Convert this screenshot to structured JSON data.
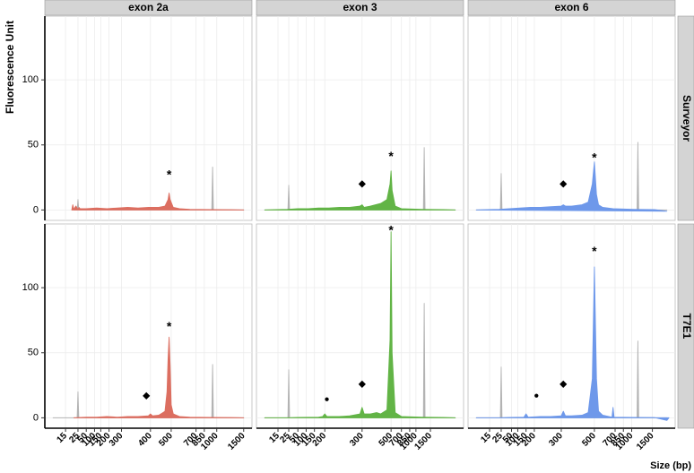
{
  "chart_data": {
    "type": "area",
    "y_label": "Fluorescence Unit",
    "x_label": "Size (bp)",
    "columns": [
      "exon 2a",
      "exon 3",
      "exon 6"
    ],
    "rows": [
      "Surveyor",
      "T7E1"
    ],
    "ylim": [
      -8,
      149
    ],
    "yticks": [
      0,
      50,
      100
    ],
    "grid": true,
    "x_axes": [
      {
        "xlim": [
          0,
          100
        ],
        "xticks": [
          {
            "value": 10,
            "label": "15"
          },
          {
            "value": 16,
            "label": "25"
          },
          {
            "value": 20,
            "label": "50"
          },
          {
            "value": 24,
            "label": "100"
          },
          {
            "value": 27,
            "label": "150"
          },
          {
            "value": 31,
            "label": "200"
          },
          {
            "value": 37,
            "label": "300"
          },
          {
            "value": 51,
            "label": "400"
          },
          {
            "value": 61,
            "label": "500"
          },
          {
            "value": 73,
            "label": "700"
          },
          {
            "value": 77,
            "label": "850"
          },
          {
            "value": 83,
            "label": "1000"
          },
          {
            "value": 96,
            "label": "1500"
          }
        ]
      },
      {
        "xlim": [
          0,
          100
        ],
        "xticks": [
          {
            "value": 10.4,
            "label": "15"
          },
          {
            "value": 15.6,
            "label": "25"
          },
          {
            "value": 20,
            "label": "50"
          },
          {
            "value": 24,
            "label": "100"
          },
          {
            "value": 28,
            "label": "150"
          },
          {
            "value": 33,
            "label": "200"
          },
          {
            "value": 51,
            "label": "300"
          },
          {
            "value": 65,
            "label": "500"
          },
          {
            "value": 70,
            "label": "700"
          },
          {
            "value": 74,
            "label": "850"
          },
          {
            "value": 77,
            "label": "1000"
          },
          {
            "value": 84,
            "label": "1500"
          }
        ]
      },
      {
        "xlim": [
          0,
          100
        ],
        "xticks": [
          {
            "value": 10.4,
            "label": "15"
          },
          {
            "value": 16,
            "label": "25"
          },
          {
            "value": 21,
            "label": "50"
          },
          {
            "value": 24,
            "label": "100"
          },
          {
            "value": 28,
            "label": "150"
          },
          {
            "value": 32,
            "label": "200"
          },
          {
            "value": 45,
            "label": "300"
          },
          {
            "value": 61,
            "label": "500"
          },
          {
            "value": 71,
            "label": "700"
          },
          {
            "value": 75,
            "label": "850"
          },
          {
            "value": 79,
            "label": "1000"
          },
          {
            "value": 89,
            "label": "1500"
          }
        ]
      }
    ],
    "panels": [
      [
        {
          "series": [
            {
              "color": "#b3b3b3",
              "x": [
                14,
                15.6,
                16,
                16.4,
                80.6,
                81,
                81.4,
                96
              ],
              "values": [
                0,
                0,
                8,
                0,
                0,
                33,
                0,
                0
              ]
            },
            {
              "color": "#dc6e60",
              "x": [
                13,
                13.5,
                14,
                15,
                16,
                16.5,
                17,
                20,
                25,
                30,
                35,
                40,
                45,
                50,
                55,
                58,
                59.5,
                60,
                60.5,
                62,
                65,
                70,
                80,
                90,
                96
              ],
              "values": [
                0,
                4,
                0.5,
                3,
                0.5,
                2,
                1,
                1,
                1.5,
                1,
                1.5,
                2,
                1.5,
                2,
                2,
                3,
                8,
                13,
                8,
                2,
                1,
                0.5,
                0.3,
                0.2,
                0
              ]
            }
          ],
          "annotations": [
            {
              "text": "*",
              "x": 60,
              "y": 30
            }
          ]
        },
        {
          "series": [
            {
              "color": "#b3b3b3",
              "x": [
                4,
                15.2,
                15.6,
                16,
                80.6,
                81,
                81.4,
                96
              ],
              "values": [
                0,
                0,
                19,
                0,
                0,
                48,
                0,
                0
              ]
            },
            {
              "color": "#62b446",
              "x": [
                4,
                10,
                15,
                20,
                25,
                30,
                35,
                40,
                45,
                50,
                51,
                52,
                55,
                60,
                63,
                64.5,
                65,
                65.5,
                67,
                70,
                80,
                90,
                96
              ],
              "values": [
                0,
                0.3,
                0.5,
                1,
                1,
                1.5,
                1.5,
                2,
                2,
                3,
                4,
                2,
                3,
                5,
                8,
                20,
                30,
                15,
                3,
                1,
                0.5,
                0.3,
                0
              ]
            }
          ],
          "annotations": [
            {
              "text": "*",
              "x": 65,
              "y": 44
            },
            {
              "text": "◆",
              "x": 51,
              "y": 20
            }
          ]
        },
        {
          "series": [
            {
              "color": "#b3b3b3",
              "x": [
                4,
                15.6,
                16,
                16.4,
                81.6,
                82,
                82.4,
                96
              ],
              "values": [
                0,
                0,
                28,
                0,
                0,
                52,
                0,
                0
              ]
            },
            {
              "color": "#6e98ea",
              "x": [
                4,
                10,
                15,
                20,
                25,
                30,
                35,
                40,
                45,
                46,
                47,
                50,
                55,
                58,
                60,
                61,
                62,
                63,
                65,
                70,
                80,
                90,
                96
              ],
              "values": [
                0,
                0.3,
                0.5,
                1,
                1.5,
                2,
                2,
                2.5,
                3,
                4,
                3,
                3,
                4,
                6,
                20,
                37,
                12,
                4,
                2,
                1,
                0.5,
                0.3,
                -1
              ]
            }
          ],
          "annotations": [
            {
              "text": "*",
              "x": 61,
              "y": 43
            },
            {
              "text": "◆",
              "x": 46,
              "y": 20
            }
          ]
        }
      ],
      [
        {
          "series": [
            {
              "color": "#b3b3b3",
              "x": [
                4,
                15.6,
                16,
                16.4,
                80.6,
                81,
                81.4,
                96
              ],
              "values": [
                0,
                0,
                20,
                0,
                0,
                41,
                0,
                0
              ]
            },
            {
              "color": "#dc6e60",
              "x": [
                14,
                20,
                25,
                30,
                35,
                40,
                45,
                50,
                51,
                52,
                55,
                57,
                58,
                59,
                59.5,
                60,
                60.5,
                61,
                62,
                65,
                70,
                80,
                90,
                96
              ],
              "values": [
                0,
                0.5,
                0.5,
                1,
                0.5,
                1,
                1,
                1.5,
                3,
                1.5,
                2,
                4,
                5,
                20,
                45,
                62,
                40,
                10,
                3,
                1,
                0.5,
                0.3,
                0.2,
                0
              ]
            }
          ],
          "annotations": [
            {
              "text": "*",
              "x": 60,
              "y": 73
            },
            {
              "text": "◆",
              "x": 49,
              "y": 17
            }
          ]
        },
        {
          "series": [
            {
              "color": "#b3b3b3",
              "x": [
                4,
                15.2,
                15.6,
                16,
                80.6,
                81,
                81.4,
                96
              ],
              "values": [
                0,
                0,
                37,
                0,
                0,
                88,
                0,
                0
              ]
            },
            {
              "color": "#62b446",
              "x": [
                4,
                15,
                20,
                30,
                32,
                33,
                34,
                40,
                45,
                50,
                51,
                52,
                55,
                58,
                60,
                63,
                64.5,
                65,
                65.5,
                67,
                70,
                80,
                90,
                96
              ],
              "values": [
                0,
                0,
                0.3,
                0.5,
                1,
                3,
                1,
                1,
                1.5,
                3,
                8,
                3,
                3,
                4,
                3,
                6,
                60,
                143,
                50,
                4,
                1,
                0.5,
                0.3,
                0
              ]
            }
          ],
          "annotations": [
            {
              "text": "*",
              "x": 65,
              "y": 147
            },
            {
              "text": "◆",
              "x": 51,
              "y": 26
            },
            {
              "text": "●",
              "x": 34,
              "y": 14
            }
          ]
        },
        {
          "series": [
            {
              "color": "#b3b3b3",
              "x": [
                4,
                15.6,
                16,
                16.4,
                81.6,
                82,
                82.4,
                96
              ],
              "values": [
                0,
                0,
                39,
                0,
                0,
                59,
                0,
                0
              ]
            },
            {
              "color": "#6e98ea",
              "x": [
                4,
                15,
                20,
                27,
                28,
                29,
                35,
                40,
                45,
                46,
                47,
                50,
                55,
                58,
                60,
                61,
                62,
                63,
                65,
                69.5,
                70,
                70.5,
                80,
                90,
                96,
                97
              ],
              "values": [
                0,
                0,
                0.3,
                0.5,
                3,
                0.5,
                1,
                1,
                1.5,
                5,
                1.5,
                1.5,
                2,
                4,
                30,
                116,
                30,
                5,
                2,
                0.5,
                8,
                0.5,
                0.3,
                0.2,
                -2,
                0
              ]
            }
          ],
          "annotations": [
            {
              "text": "*",
              "x": 61,
              "y": 131
            },
            {
              "text": "◆",
              "x": 46,
              "y": 26
            },
            {
              "text": "●",
              "x": 33,
              "y": 17
            }
          ]
        }
      ]
    ]
  }
}
